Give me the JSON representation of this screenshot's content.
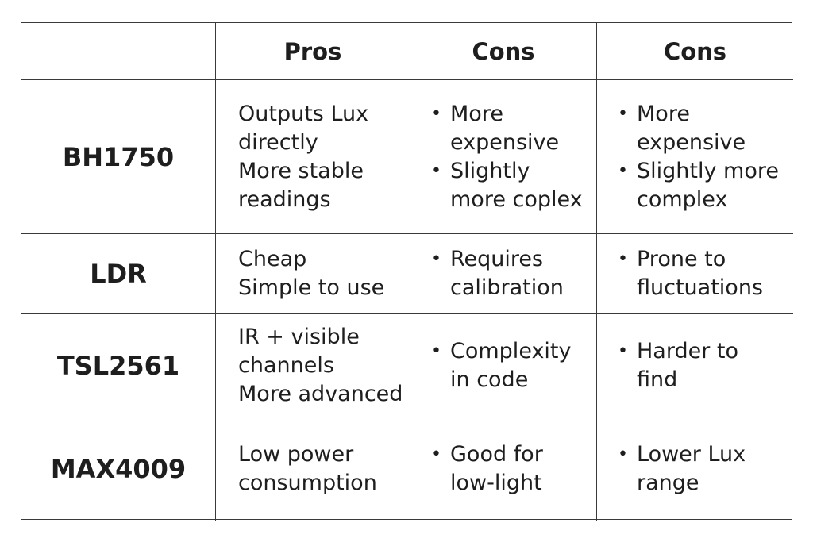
{
  "header": {
    "corner": "",
    "col1": "Pros",
    "col2": "Cons",
    "col3": "Cons"
  },
  "rows": [
    {
      "name": "BH1750",
      "pros": [
        "Outputs Lux",
        "directly",
        "More stable",
        "readings"
      ],
      "cons_a": [
        [
          "More",
          "expensive"
        ],
        [
          "Slightly",
          "more coplex"
        ]
      ],
      "cons_b": [
        [
          "More",
          "expensive"
        ],
        [
          "Slightly more",
          "complex"
        ]
      ]
    },
    {
      "name": "LDR",
      "pros": [
        "Cheap",
        "Simple to use"
      ],
      "cons_a": [
        [
          "Requires",
          "calibration"
        ]
      ],
      "cons_b": [
        [
          "Prone to",
          "fluctuations"
        ]
      ]
    },
    {
      "name": "TSL2561",
      "pros": [
        "IR + visible",
        "channels",
        "More advanced"
      ],
      "cons_a": [
        [
          "Complexity",
          "in code"
        ]
      ],
      "cons_b": [
        [
          "Harder to",
          "find"
        ]
      ]
    },
    {
      "name": "MAX4009",
      "pros": [
        "Low power",
        "consumption"
      ],
      "cons_a": [
        [
          "Good for",
          "low-light"
        ]
      ],
      "cons_b": [
        [
          "Lower Lux",
          "range"
        ]
      ]
    }
  ],
  "bullet_glyph": "•"
}
